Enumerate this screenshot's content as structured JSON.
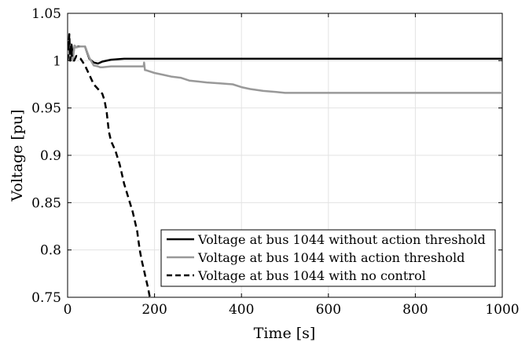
{
  "chart_data": {
    "type": "line",
    "title": "",
    "xlabel": "Time [s]",
    "ylabel": "Voltage [pu]",
    "xlim": [
      0,
      1000
    ],
    "ylim": [
      0.75,
      1.05
    ],
    "xticks": [
      0,
      200,
      400,
      600,
      800,
      1000
    ],
    "xtick_labels": [
      "0",
      "200",
      "400",
      "600",
      "800",
      "1000"
    ],
    "yticks": [
      0.75,
      0.8,
      0.85,
      0.9,
      0.95,
      1.0,
      1.05
    ],
    "ytick_labels": [
      "0.75",
      "0.8",
      "0.85",
      "0.9",
      "0.95",
      "1",
      "1.05"
    ],
    "grid": true,
    "legend_position": "bottom-right",
    "series": [
      {
        "name": "Voltage at bus 1044 without action threshold",
        "color": "#000000",
        "line_style": "solid",
        "x": [
          0,
          3,
          6,
          9,
          12,
          16,
          20,
          25,
          30,
          40,
          50,
          55,
          60,
          70,
          80,
          100,
          130,
          160,
          200,
          300,
          500,
          700,
          1000
        ],
        "y": [
          1.0,
          1.02,
          1.0,
          1.017,
          1.005,
          1.015,
          1.014,
          1.015,
          1.015,
          1.015,
          1.002,
          1.0,
          0.998,
          0.997,
          0.999,
          1.001,
          1.002,
          1.002,
          1.002,
          1.002,
          1.002,
          1.002,
          1.002
        ]
      },
      {
        "name": "Voltage at bus 1044 with action threshold",
        "color": "#999999",
        "line_style": "solid",
        "x": [
          0,
          3,
          6,
          9,
          12,
          16,
          20,
          30,
          40,
          50,
          60,
          70,
          75,
          80,
          100,
          120,
          150,
          175,
          176,
          178,
          180,
          200,
          220,
          240,
          260,
          280,
          300,
          320,
          350,
          380,
          400,
          420,
          450,
          480,
          500,
          600,
          700,
          800,
          900,
          1000
        ],
        "y": [
          1.0,
          1.016,
          1.002,
          1.01,
          1.0,
          1.016,
          1.014,
          1.015,
          1.015,
          1.003,
          0.995,
          0.994,
          0.993,
          0.993,
          0.994,
          0.994,
          0.994,
          0.994,
          0.998,
          0.99,
          0.99,
          0.987,
          0.985,
          0.983,
          0.982,
          0.979,
          0.978,
          0.977,
          0.976,
          0.975,
          0.972,
          0.97,
          0.968,
          0.967,
          0.966,
          0.966,
          0.966,
          0.966,
          0.966,
          0.966
        ]
      },
      {
        "name": "Voltage at bus 1044 with no control",
        "color": "#000000",
        "line_style": "dashed",
        "x": [
          0,
          2,
          4,
          6,
          8,
          10,
          15,
          20,
          30,
          40,
          50,
          60,
          70,
          80,
          85,
          90,
          95,
          100,
          110,
          120,
          130,
          140,
          150,
          155,
          160,
          163,
          166,
          170,
          175,
          180,
          185,
          190
        ],
        "y": [
          1.0,
          1.01,
          1.028,
          1.0,
          1.015,
          1.005,
          1.0,
          1.005,
          1.002,
          0.995,
          0.985,
          0.975,
          0.97,
          0.965,
          0.958,
          0.945,
          0.925,
          0.915,
          0.905,
          0.89,
          0.87,
          0.855,
          0.84,
          0.83,
          0.82,
          0.81,
          0.8,
          0.79,
          0.78,
          0.77,
          0.76,
          0.748
        ]
      }
    ]
  }
}
